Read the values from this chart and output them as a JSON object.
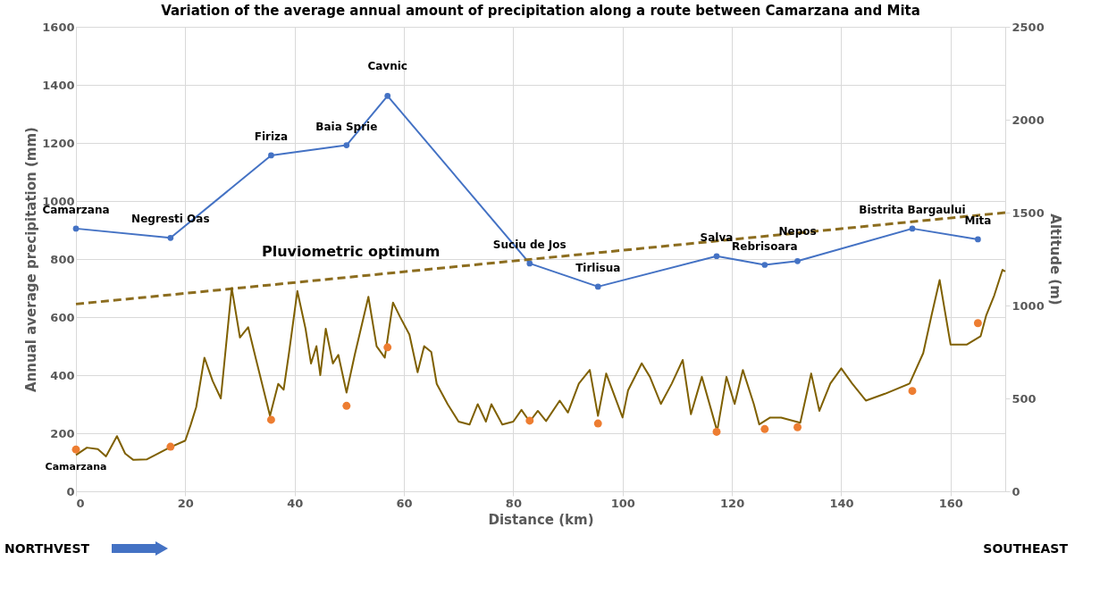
{
  "chart_data": {
    "type": "line",
    "title": "Variation of the average annual amount of precipitation along a route between Camarzana and Mita",
    "xlabel": "Distance (km)",
    "ylabel": "Annual average precipitation (mm)",
    "y2label": "Altitude (m)",
    "xlim": [
      0,
      170
    ],
    "xticks": [
      0,
      20,
      40,
      60,
      80,
      100,
      120,
      140,
      160
    ],
    "ylim": [
      0,
      1600
    ],
    "yticks": [
      0,
      200,
      400,
      600,
      800,
      1000,
      1200,
      1400,
      1600
    ],
    "y2lim": [
      0,
      2500
    ],
    "y2ticks": [
      0,
      500,
      1000,
      1500,
      2000,
      2500
    ],
    "grid": true,
    "series": [
      {
        "color": "#4472c4",
        "marker": "circle",
        "x": [
          0,
          17.3,
          35.7,
          49.5,
          57,
          83,
          95.5,
          117.2,
          126,
          132,
          153,
          165
        ],
        "values": [
          905,
          873,
          1157,
          1192,
          1362,
          785,
          705,
          810,
          780,
          793,
          905,
          868
        ]
      },
      {
        "color": "#7f6000",
        "marker": "none",
        "axis": "y2",
        "x": [
          0,
          2,
          4,
          5.5,
          7.5,
          9,
          10.5,
          13,
          17,
          20,
          21,
          22,
          23.5,
          25,
          26.5,
          28.5,
          30,
          31.5,
          33,
          35.5,
          37,
          38,
          39,
          40.5,
          42,
          43,
          44,
          44.7,
          45.7,
          47,
          48,
          49.5,
          51,
          53.5,
          55,
          56.5,
          58,
          59.3,
          61,
          62.5,
          63.7,
          65,
          66,
          68,
          70,
          72,
          73.5,
          75,
          76,
          78,
          80,
          81.5,
          83,
          84.5,
          86,
          88.5,
          90,
          92,
          94,
          95.5,
          97,
          100,
          101,
          103.5,
          105,
          107,
          109,
          111,
          112.5,
          114.5,
          117.3,
          119,
          120.5,
          122,
          124,
          125,
          127,
          129,
          132.5,
          134.5,
          136,
          138,
          140,
          142,
          144.5,
          148,
          152.5,
          155,
          156.5,
          158,
          159,
          160,
          163,
          165.5,
          166.5,
          168,
          169.5,
          170
        ],
        "values": [
          195,
          235,
          227,
          188,
          297,
          203,
          169,
          172,
          234,
          273,
          359,
          453,
          719,
          594,
          500,
          1094,
          828,
          883,
          703,
          406,
          578,
          547,
          750,
          1078,
          875,
          688,
          781,
          625,
          875,
          688,
          734,
          531,
          734,
          1047,
          781,
          719,
          1016,
          938,
          844,
          641,
          781,
          750,
          578,
          469,
          375,
          359,
          469,
          375,
          469,
          359,
          375,
          438,
          375,
          433,
          378,
          488,
          424,
          580,
          653,
          406,
          634,
          397,
          543,
          689,
          616,
          470,
          580,
          707,
          415,
          616,
          324,
          616,
          470,
          653,
          470,
          360,
          397,
          397,
          369,
          634,
          433,
          580,
          662,
          580,
          488,
          525,
          580,
          744,
          945,
          1137,
          963,
          790,
          790,
          835,
          945,
          1055,
          1192,
          1183
        ]
      },
      {
        "type": "scatter",
        "color": "#ed7d31",
        "marker": "circle",
        "axis": "y2",
        "x": [
          0,
          17.3,
          35.7,
          49.5,
          57,
          83,
          95.5,
          117.2,
          126,
          132,
          153,
          165
        ],
        "values": [
          225,
          240,
          385,
          460,
          775,
          380,
          365,
          320,
          335,
          345,
          540,
          905
        ]
      },
      {
        "color": "#8c6d1f",
        "marker": "none",
        "line_style": "dashed",
        "x": [
          0,
          170
        ],
        "values": [
          645,
          960
        ]
      }
    ],
    "annotations": [
      {
        "text": "Camarzana",
        "x": 0,
        "y": 905
      },
      {
        "text": "Negresti Oas",
        "x": 17.3,
        "y": 873
      },
      {
        "text": "Firiza",
        "x": 35.7,
        "y": 1157
      },
      {
        "text": "Baia Sprie",
        "x": 49.5,
        "y": 1192
      },
      {
        "text": "Cavnic",
        "x": 57,
        "y": 1362
      },
      {
        "text": "Suciu de Jos",
        "x": 83,
        "y": 785
      },
      {
        "text": "Tirlisua",
        "x": 95.5,
        "y": 705
      },
      {
        "text": "Salva",
        "x": 117.2,
        "y": 810
      },
      {
        "text": "Rebrisoara",
        "x": 126,
        "y": 780
      },
      {
        "text": "Nepos",
        "x": 132,
        "y": 793
      },
      {
        "text": "Bistrita Bargaului",
        "x": 153,
        "y": 905
      },
      {
        "text": "Mita",
        "x": 165,
        "y": 868
      },
      {
        "text": "Camarzana",
        "x": 0,
        "y": 145
      },
      "Pluviometric optimum",
      "NORTHVEST",
      "SOUTHEAST"
    ]
  }
}
